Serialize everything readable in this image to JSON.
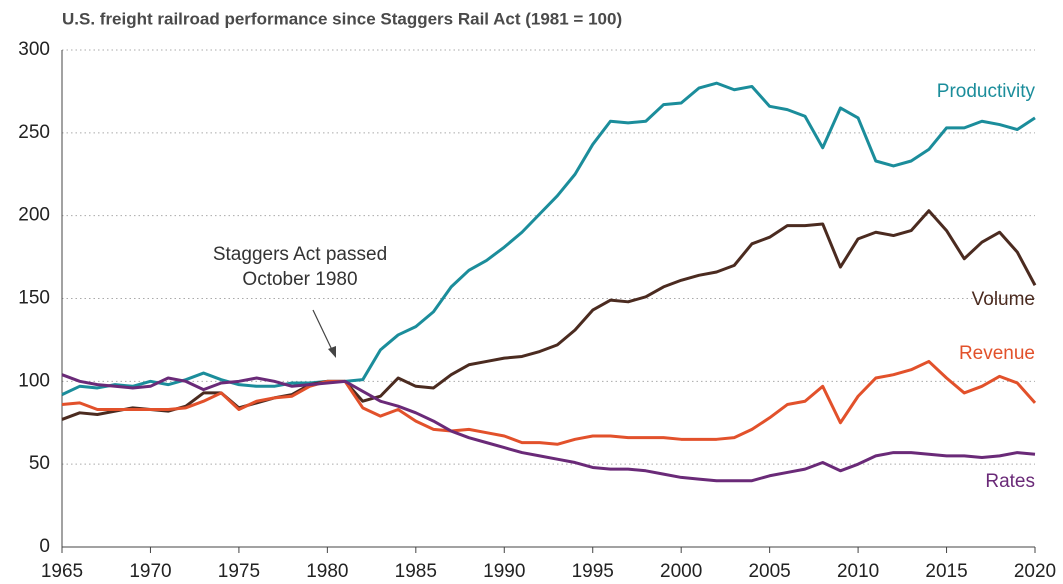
{
  "chart_data": {
    "type": "line",
    "title": "U.S. freight railroad performance since Staggers Rail Act (1981 = 100)",
    "annotation": [
      "Staggers Act passed",
      "October 1980"
    ],
    "x": [
      1965,
      1966,
      1967,
      1968,
      1969,
      1970,
      1971,
      1972,
      1973,
      1974,
      1975,
      1976,
      1977,
      1978,
      1979,
      1980,
      1981,
      1982,
      1983,
      1984,
      1985,
      1986,
      1987,
      1988,
      1989,
      1990,
      1991,
      1992,
      1993,
      1994,
      1995,
      1996,
      1997,
      1998,
      1999,
      2000,
      2001,
      2002,
      2003,
      2004,
      2005,
      2006,
      2007,
      2008,
      2009,
      2010,
      2011,
      2012,
      2013,
      2014,
      2015,
      2016,
      2017,
      2018,
      2019,
      2020
    ],
    "xlim": [
      1965,
      2020
    ],
    "xticks": [
      1965,
      1970,
      1975,
      1980,
      1985,
      1990,
      1995,
      2000,
      2005,
      2010,
      2015,
      2020
    ],
    "ylim": [
      0,
      300
    ],
    "yticks": [
      0,
      50,
      100,
      150,
      200,
      250,
      300
    ],
    "grid": true,
    "series": [
      {
        "name": "Productivity",
        "color": "#1b8d9b",
        "values": [
          92,
          97,
          96,
          98,
          97,
          100,
          98,
          101,
          105,
          101,
          98,
          97,
          97,
          99,
          99,
          100,
          100,
          101,
          119,
          128,
          133,
          142,
          157,
          167,
          173,
          181,
          190,
          201,
          212,
          225,
          243,
          257,
          256,
          257,
          267,
          268,
          277,
          280,
          276,
          278,
          266,
          264,
          260,
          241,
          265,
          259,
          233,
          230,
          233,
          240,
          253,
          253,
          257,
          255,
          252,
          259
        ]
      },
      {
        "name": "Volume",
        "color": "#4b2b20",
        "values": [
          77,
          81,
          80,
          82,
          84,
          83,
          82,
          85,
          93,
          93,
          84,
          87,
          90,
          92,
          98,
          100,
          100,
          88,
          91,
          102,
          97,
          96,
          104,
          110,
          112,
          114,
          115,
          118,
          122,
          131,
          143,
          149,
          148,
          151,
          157,
          161,
          164,
          166,
          170,
          183,
          187,
          194,
          194,
          195,
          169,
          186,
          190,
          188,
          191,
          203,
          191,
          174,
          184,
          190,
          178,
          158
        ]
      },
      {
        "name": "Revenue",
        "color": "#e2512b",
        "values": [
          86,
          87,
          83,
          83,
          83,
          83,
          83,
          84,
          88,
          93,
          83,
          88,
          90,
          91,
          97,
          100,
          100,
          84,
          79,
          83,
          76,
          71,
          70,
          71,
          69,
          67,
          63,
          63,
          62,
          65,
          67,
          67,
          66,
          66,
          66,
          65,
          65,
          65,
          66,
          71,
          78,
          86,
          88,
          97,
          75,
          91,
          102,
          104,
          107,
          112,
          102,
          93,
          97,
          103,
          99,
          87
        ]
      },
      {
        "name": "Rates",
        "color": "#6a2a78",
        "values": [
          104,
          100,
          98,
          97,
          96,
          97,
          102,
          100,
          95,
          99,
          100,
          102,
          100,
          97,
          98,
          99,
          100,
          94,
          88,
          85,
          81,
          76,
          70,
          66,
          63,
          60,
          57,
          55,
          53,
          51,
          48,
          47,
          47,
          46,
          44,
          42,
          41,
          40,
          40,
          40,
          43,
          45,
          47,
          51,
          46,
          50,
          55,
          57,
          57,
          56,
          55,
          55,
          54,
          55,
          57,
          56
        ]
      }
    ]
  }
}
